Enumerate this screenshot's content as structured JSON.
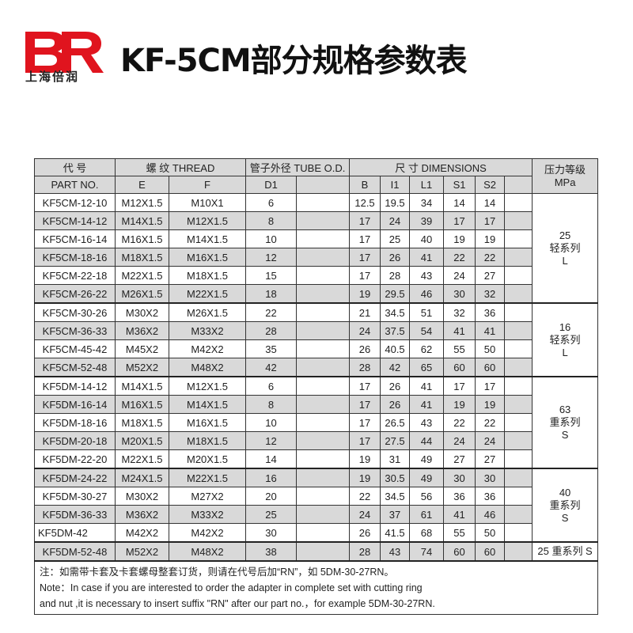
{
  "logo": {
    "letters": "BR",
    "text": "上海倍润",
    "color": "#e0141e"
  },
  "title": "KF-5CM部分规格参数表",
  "header": {
    "code_cn": "代  号",
    "part_no": "PART  NO.",
    "thread": "螺  纹   THREAD",
    "tube": "管子外径 TUBE O.D.",
    "dimensions": "尺  寸    DIMENSIONS",
    "pressure": "压力等级\nMPa",
    "pressure_cn": "压力等级",
    "pressure_unit": "MPa",
    "E": "E",
    "F": "F",
    "D1": "D1",
    "B": "B",
    "l1": "I1",
    "L1": "L1",
    "S1": "S1",
    "S2": "S2"
  },
  "rows": [
    [
      "KF5CM-12-10",
      "M12X1.5",
      "M10X1",
      "6",
      "12.5",
      "19.5",
      "34",
      "14",
      "14"
    ],
    [
      "KF5CM-14-12",
      "M14X1.5",
      "M12X1.5",
      "8",
      "17",
      "24",
      "39",
      "17",
      "17"
    ],
    [
      "KF5CM-16-14",
      "M16X1.5",
      "M14X1.5",
      "10",
      "17",
      "25",
      "40",
      "19",
      "19"
    ],
    [
      "KF5CM-18-16",
      "M18X1.5",
      "M16X1.5",
      "12",
      "17",
      "26",
      "41",
      "22",
      "22"
    ],
    [
      "KF5CM-22-18",
      "M22X1.5",
      "M18X1.5",
      "15",
      "17",
      "28",
      "43",
      "24",
      "27"
    ],
    [
      "KF5CM-26-22",
      "M26X1.5",
      "M22X1.5",
      "18",
      "19",
      "29.5",
      "46",
      "30",
      "32"
    ],
    [
      "KF5CM-30-26",
      "M30X2",
      "M26X1.5",
      "22",
      "21",
      "34.5",
      "51",
      "32",
      "36"
    ],
    [
      "KF5CM-36-33",
      "M36X2",
      "M33X2",
      "28",
      "24",
      "37.5",
      "54",
      "41",
      "41"
    ],
    [
      "KF5CM-45-42",
      "M45X2",
      "M42X2",
      "35",
      "26",
      "40.5",
      "62",
      "55",
      "50"
    ],
    [
      "KF5CM-52-48",
      "M52X2",
      "M48X2",
      "42",
      "28",
      "42",
      "65",
      "60",
      "60"
    ],
    [
      "KF5DM-14-12",
      "M14X1.5",
      "M12X1.5",
      "6",
      "17",
      "26",
      "41",
      "17",
      "17"
    ],
    [
      "KF5DM-16-14",
      "M16X1.5",
      "M14X1.5",
      "8",
      "17",
      "26",
      "41",
      "19",
      "19"
    ],
    [
      "KF5DM-18-16",
      "M18X1.5",
      "M16X1.5",
      "10",
      "17",
      "26.5",
      "43",
      "22",
      "22"
    ],
    [
      "KF5DM-20-18",
      "M20X1.5",
      "M18X1.5",
      "12",
      "17",
      "27.5",
      "44",
      "24",
      "24"
    ],
    [
      "KF5DM-22-20",
      "M22X1.5",
      "M20X1.5",
      "14",
      "19",
      "31",
      "49",
      "27",
      "27"
    ],
    [
      "KF5DM-24-22",
      "M24X1.5",
      "M22X1.5",
      "16",
      "19",
      "30.5",
      "49",
      "30",
      "30"
    ],
    [
      "KF5DM-30-27",
      "M30X2",
      "M27X2",
      "20",
      "22",
      "34.5",
      "56",
      "36",
      "36"
    ],
    [
      "KF5DM-36-33",
      "M36X2",
      "M33X2",
      "25",
      "24",
      "37",
      "61",
      "41",
      "46"
    ],
    [
      "KF5DM-42",
      "M42X2",
      "M42X2",
      "30",
      "26",
      "41.5",
      "68",
      "55",
      "50"
    ],
    [
      "KF5DM-52-48",
      "M52X2",
      "M48X2",
      "38",
      "28",
      "43",
      "74",
      "60",
      "60"
    ]
  ],
  "pressure_groups": [
    {
      "value": "25",
      "series": "轻系列",
      "code": "L",
      "rows": 6
    },
    {
      "value": "16",
      "series": "轻系列",
      "code": "L",
      "rows": 4
    },
    {
      "value": "63",
      "series": "重系列",
      "code": "S",
      "rows": 5
    },
    {
      "value": "40",
      "series": "重系列",
      "code": "S",
      "rows": 4
    },
    {
      "value": "25 重系列 S",
      "rows": 1
    }
  ],
  "notes": {
    "cn": "注：如需带卡套及卡套螺母整套订货，则请在代号后加“RN”，如 5DM-30-27RN。",
    "en1": "Note：In case if you are interested to order the adapter in complete set with cutting ring",
    "en2": "and nut ,it is necessary to insert suffix \"RN\"  after our part no.，for example 5DM-30-27RN."
  }
}
